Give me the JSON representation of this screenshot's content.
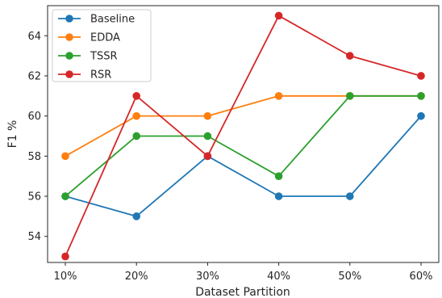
{
  "chart_data": {
    "type": "line",
    "title": "",
    "xlabel": "Dataset Partition",
    "ylabel": "F1 %",
    "categories": [
      "10%",
      "20%",
      "30%",
      "40%",
      "50%",
      "60%"
    ],
    "ylim": [
      52.7,
      65.5
    ],
    "yticks": [
      54,
      56,
      58,
      60,
      62,
      64
    ],
    "grid": false,
    "legend_position": "top-left",
    "series": [
      {
        "name": "Baseline",
        "color": "#1f77b4",
        "values": [
          56,
          55,
          58,
          56,
          56,
          60
        ]
      },
      {
        "name": "EDDA",
        "color": "#ff7f0e",
        "values": [
          58,
          60,
          60,
          61,
          61,
          61
        ]
      },
      {
        "name": "TSSR",
        "color": "#2ca02c",
        "values": [
          56,
          59,
          59,
          57,
          61,
          61
        ]
      },
      {
        "name": "RSR",
        "color": "#d62728",
        "values": [
          53,
          61,
          58,
          65,
          63,
          62
        ]
      }
    ]
  }
}
